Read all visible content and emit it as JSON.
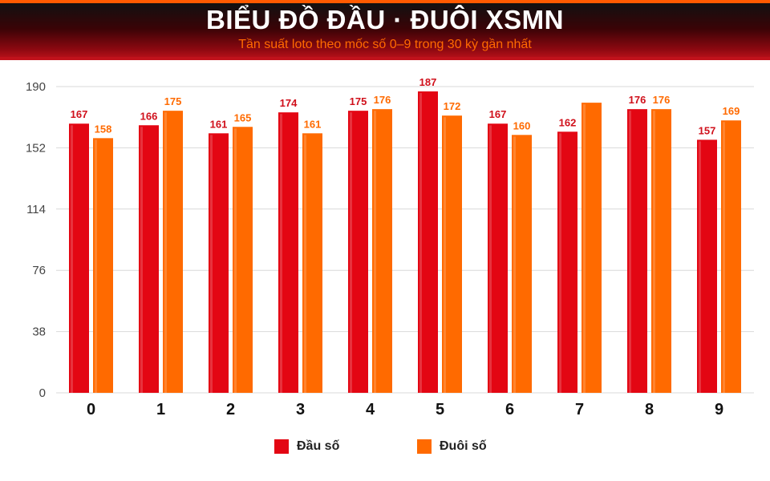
{
  "header": {
    "title": "BIỂU ĐỒ ĐẦU · ĐUÔI XSMN",
    "subtitle": "Tần suất loto theo mốc số 0–9 trong 30 kỳ gần nhất"
  },
  "colors": {
    "dau": "#e30613",
    "duoi": "#ff6a00",
    "dau_label": "#d0101b",
    "duoi_label": "#ff6a00",
    "grid": "#d9d9d9"
  },
  "chart_data": {
    "type": "bar",
    "title": "BIỂU ĐỒ ĐẦU · ĐUÔI XSMN",
    "subtitle": "Tần suất loto theo mốc số 0–9 trong 30 kỳ gần nhất",
    "xlabel": "",
    "ylabel": "",
    "categories": [
      "0",
      "1",
      "2",
      "3",
      "4",
      "5",
      "6",
      "7",
      "8",
      "9"
    ],
    "series": [
      {
        "name": "Đầu số",
        "values": [
          167,
          166,
          161,
          174,
          175,
          187,
          167,
          162,
          176,
          157
        ]
      },
      {
        "name": "Đuôi số",
        "values": [
          158,
          175,
          165,
          161,
          176,
          172,
          160,
          180,
          176,
          169
        ]
      }
    ],
    "value_labels": [
      [
        "167",
        "166",
        "161",
        "174",
        "175",
        "187",
        "167",
        "162",
        "176",
        "157"
      ],
      [
        "158",
        "175",
        "165",
        "161",
        "176",
        "172",
        "160",
        "",
        "176",
        "169"
      ]
    ],
    "yticks": [
      "0",
      "38",
      "76",
      "114",
      "152",
      "190"
    ],
    "ylim": [
      0,
      190
    ],
    "grid": true,
    "legend_position": "bottom-center"
  },
  "legend": [
    {
      "label": "Đầu số"
    },
    {
      "label": "Đuôi số"
    }
  ]
}
